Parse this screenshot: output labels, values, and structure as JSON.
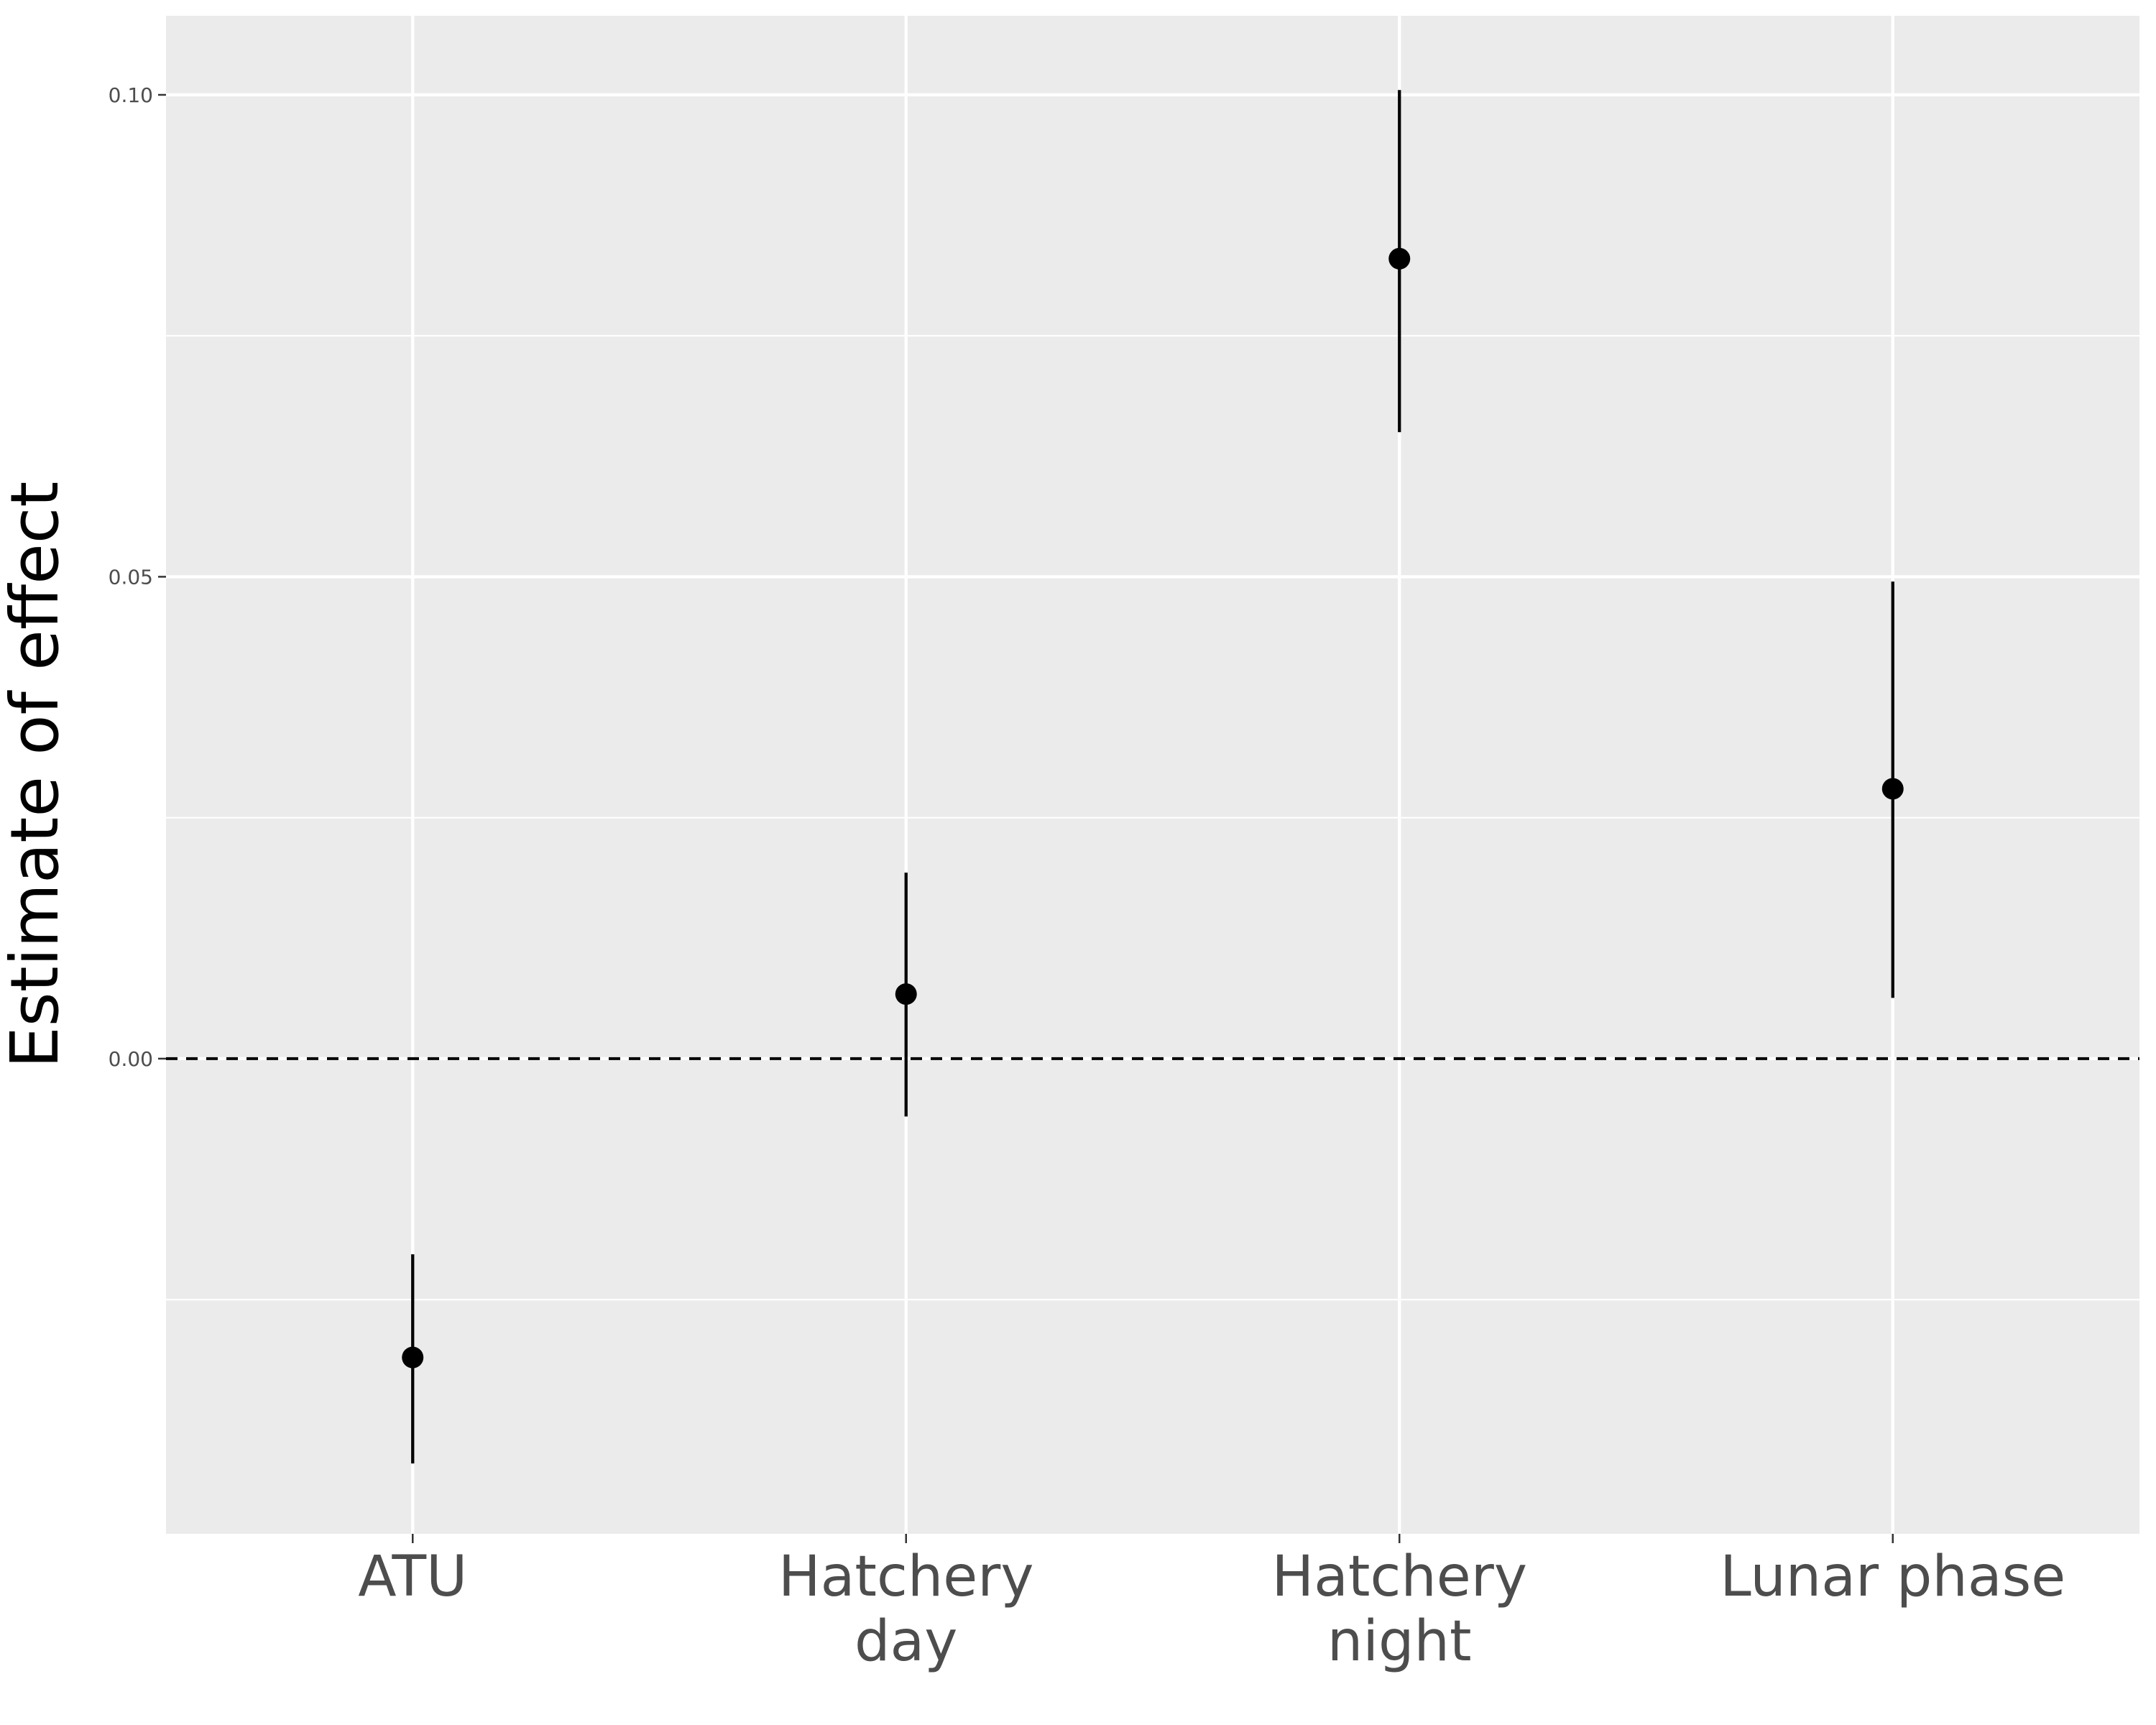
{
  "chart_data": {
    "type": "scatter",
    "title": "",
    "xlabel": "",
    "ylabel": "Estimate of effect",
    "categories": [
      [
        "ATU"
      ],
      [
        "Hatchery",
        "day"
      ],
      [
        "Hatchery",
        "night"
      ],
      [
        "Lunar phase"
      ]
    ],
    "series": [
      {
        "estimate": [
          -0.031,
          0.0067,
          0.083,
          0.028
        ],
        "lower": [
          -0.042,
          -0.006,
          0.065,
          0.0063
        ],
        "upper": [
          -0.0203,
          0.0193,
          0.1005,
          0.0495
        ]
      }
    ],
    "yticks": [
      0.0,
      0.05,
      0.1
    ],
    "ytick_labels": [
      "0.00",
      "0.05",
      "0.10"
    ],
    "ylim": [
      -0.0493,
      0.1082
    ],
    "reference_line": 0.0,
    "grid": true,
    "legend": "none",
    "colors": {
      "panel": "#ebebeb",
      "grid": "#ffffff",
      "mark": "#000000",
      "text": "#4d4d4d"
    }
  }
}
